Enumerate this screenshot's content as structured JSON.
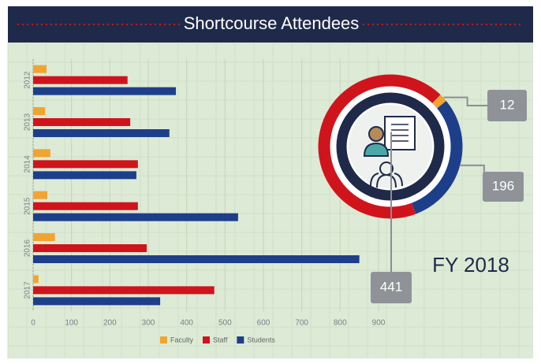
{
  "chart_data": [
    {
      "type": "barh",
      "title": "Shortcourse Attendees",
      "categories": [
        "2012",
        "2013",
        "2014",
        "2015",
        "2016",
        "2017"
      ],
      "series": [
        {
          "name": "Faculty",
          "color": "#f0a531",
          "values": [
            35,
            31,
            45,
            37,
            57,
            14
          ]
        },
        {
          "name": "Staff",
          "color": "#d0141c",
          "values": [
            246,
            253,
            273,
            273,
            296,
            472
          ]
        },
        {
          "name": "Students",
          "color": "#1d3f8a",
          "values": [
            372,
            355,
            269,
            534,
            850,
            331
          ]
        }
      ],
      "xlim": [
        0,
        900
      ],
      "xticks": [
        0,
        100,
        200,
        300,
        400,
        500,
        600,
        700,
        800,
        900
      ],
      "grid": true,
      "legend": "bottom"
    },
    {
      "type": "donut",
      "title": "FY 2018",
      "values": [
        12,
        196,
        441
      ],
      "colors": [
        "#f0a531",
        "#1d3f8a",
        "#d0141c"
      ]
    }
  ]
}
